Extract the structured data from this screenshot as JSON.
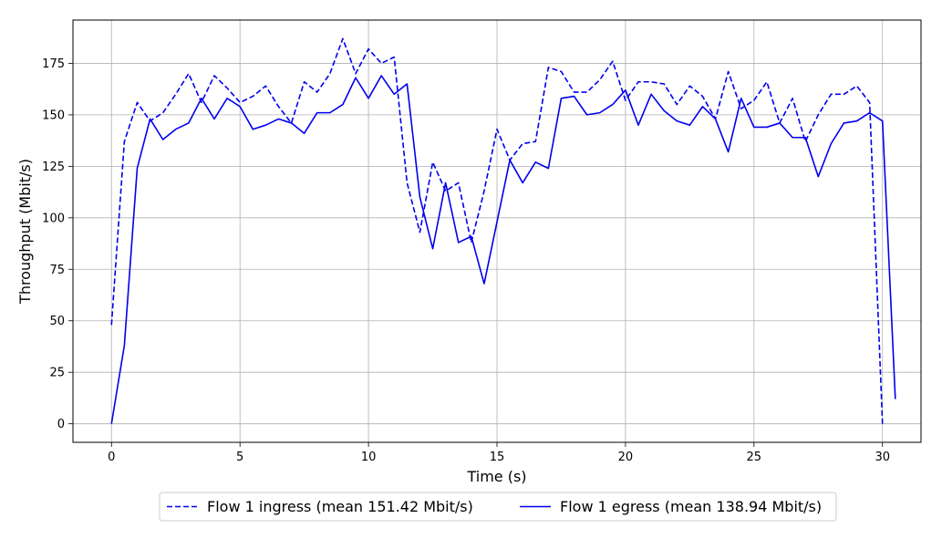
{
  "chart_data": {
    "type": "line",
    "title": "",
    "xlabel": "Time (s)",
    "ylabel": "Throughput (Mbit/s)",
    "xlim": [
      -1.5,
      31.5
    ],
    "ylim": [
      -9,
      196
    ],
    "xticks": [
      0,
      5,
      10,
      15,
      20,
      25,
      30
    ],
    "yticks": [
      0,
      25,
      50,
      75,
      100,
      125,
      150,
      175
    ],
    "grid": true,
    "legend_position": "bottom-center",
    "series_color": "#0000ee",
    "series": [
      {
        "name": "Flow 1 ingress (mean 151.42 Mbit/s)",
        "style": "dashed",
        "x": [
          0,
          0.5,
          1,
          1.5,
          2,
          2.5,
          3,
          3.5,
          4,
          4.5,
          5,
          5.5,
          6,
          6.5,
          7,
          7.5,
          8,
          8.5,
          9,
          9.5,
          10,
          10.5,
          11,
          11.5,
          12,
          12.5,
          13,
          13.5,
          14,
          14.5,
          15,
          15.5,
          16,
          16.5,
          17,
          17.5,
          18,
          18.5,
          19,
          19.5,
          20,
          20.5,
          21,
          21.5,
          22,
          22.5,
          23,
          23.5,
          24,
          24.5,
          25,
          25.5,
          26,
          26.5,
          27,
          27.5,
          28,
          28.5,
          29,
          29.5,
          30
        ],
        "values": [
          48,
          137,
          156,
          147,
          151,
          160,
          170,
          156,
          169,
          163,
          156,
          159,
          164,
          154,
          146,
          166,
          161,
          170,
          187,
          170,
          182,
          175,
          178,
          117,
          93,
          127,
          113,
          117,
          88,
          113,
          143,
          128,
          136,
          137,
          173,
          171,
          161,
          161,
          167,
          176,
          157,
          166,
          166,
          165,
          155,
          164,
          159,
          148,
          171,
          153,
          157,
          166,
          146,
          158,
          137,
          150,
          160,
          160,
          164,
          156,
          0
        ]
      },
      {
        "name": "Flow 1 egress (mean 138.94 Mbit/s)",
        "style": "solid",
        "x": [
          0,
          0.5,
          1,
          1.5,
          2,
          2.5,
          3,
          3.5,
          4,
          4.5,
          5,
          5.5,
          6,
          6.5,
          7,
          7.5,
          8,
          8.5,
          9,
          9.5,
          10,
          10.5,
          11,
          11.5,
          12,
          12.5,
          13,
          13.5,
          14,
          14.5,
          15,
          15.5,
          16,
          16.5,
          17,
          17.5,
          18,
          18.5,
          19,
          19.5,
          20,
          20.5,
          21,
          21.5,
          22,
          22.5,
          23,
          23.5,
          24,
          24.5,
          25,
          25.5,
          26,
          26.5,
          27,
          27.5,
          28,
          28.5,
          29,
          29.5,
          30,
          30.5
        ],
        "values": [
          0,
          38,
          124,
          148,
          138,
          143,
          146,
          158,
          148,
          158,
          154,
          143,
          145,
          148,
          146,
          141,
          151,
          151,
          155,
          168,
          158,
          169,
          160,
          165,
          110,
          85,
          117,
          88,
          91,
          68,
          98,
          128,
          117,
          127,
          124,
          158,
          159,
          150,
          151,
          155,
          162,
          145,
          160,
          152,
          147,
          145,
          154,
          148,
          132,
          158,
          144,
          144,
          146,
          139,
          139,
          120,
          136,
          146,
          147,
          151,
          147,
          12
        ]
      }
    ]
  }
}
